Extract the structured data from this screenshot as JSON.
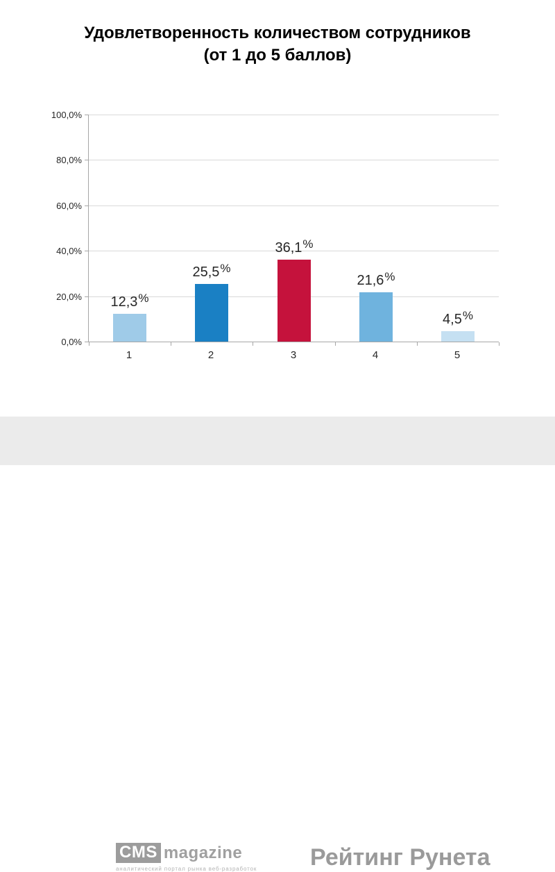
{
  "page": {
    "background": "#ffffff"
  },
  "chart_data": {
    "type": "bar",
    "title": "Удовлетворенность количеством сотрудников (от 1 до 5 баллов)",
    "title_lines": [
      "Удовлетворенность количеством сотрудников",
      "(от 1 до 5 баллов)"
    ],
    "categories": [
      "1",
      "2",
      "3",
      "4",
      "5"
    ],
    "values": [
      12.3,
      25.5,
      36.1,
      21.6,
      4.5
    ],
    "value_labels": [
      "12,3",
      "25,5",
      "36,1",
      "21,6",
      "4,5"
    ],
    "percent_suffix": "%",
    "bar_colors": [
      "#9fcbe8",
      "#1a80c4",
      "#c5123c",
      "#6fb3de",
      "#c5e0f2"
    ],
    "xlabel": "",
    "ylabel": "",
    "ylim": [
      0,
      100
    ],
    "y_ticks": [
      0,
      20,
      40,
      60,
      80,
      100
    ],
    "y_tick_labels": [
      "0,0%",
      "20,0%",
      "40,0%",
      "60,0%",
      "80,0%",
      "100,0%"
    ],
    "grid": true,
    "legend": false,
    "axis_color": "#a6a6a6",
    "grid_color": "#d9d9d9",
    "label_color": "#262626"
  },
  "footer": {
    "background": "#ebebeb",
    "cms_logo": {
      "box_text": "CMS",
      "box_color": "#9c9c9c",
      "suffix_text": "magazine",
      "tagline": "аналитический портал рынка веб-разработок"
    },
    "rating_runet_text": "Рейтинг Рунета",
    "text_color": "#9a9a9a"
  }
}
